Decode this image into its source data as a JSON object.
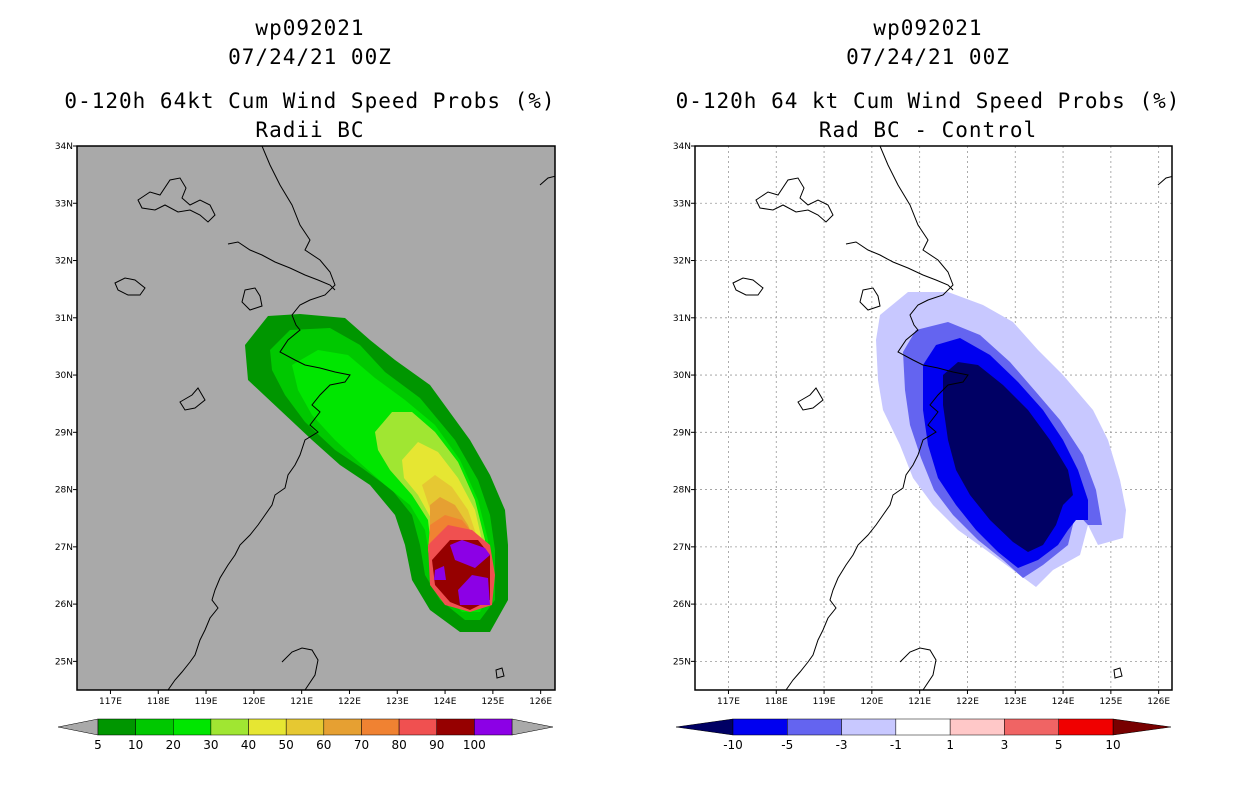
{
  "left_panel": {
    "storm_id": "wp092021",
    "datetime": "07/24/21 00Z",
    "product": "0-120h 64kt Cum Wind Speed Probs (%)",
    "subtitle": "Radii BC",
    "background_color": "#a9a9a9",
    "colorbar": {
      "colors": [
        "#009600",
        "#00c800",
        "#00e600",
        "#a0e632",
        "#e6e632",
        "#e6c832",
        "#e6a032",
        "#f08232",
        "#f05050",
        "#960000",
        "#8c00e6"
      ],
      "labels": [
        "5",
        "10",
        "20",
        "30",
        "40",
        "50",
        "60",
        "70",
        "80",
        "90",
        "100"
      ]
    },
    "probability_contours": [
      {
        "level": 5,
        "color": "#009600"
      },
      {
        "level": 10,
        "color": "#00c800"
      },
      {
        "level": 20,
        "color": "#00e600"
      },
      {
        "level": 30,
        "color": "#a0e632"
      },
      {
        "level": 40,
        "color": "#e6e632"
      },
      {
        "level": 50,
        "color": "#e6c832"
      },
      {
        "level": 60,
        "color": "#e6a032"
      },
      {
        "level": 70,
        "color": "#f08232"
      },
      {
        "level": 80,
        "color": "#f05050"
      },
      {
        "level": 90,
        "color": "#960000"
      },
      {
        "level": 100,
        "color": "#8c00e6"
      }
    ]
  },
  "right_panel": {
    "storm_id": "wp092021",
    "datetime": "07/24/21 00Z",
    "product": "0-120h 64 kt Cum Wind Speed Probs (%)",
    "subtitle": "Rad BC - Control",
    "background_color": "#ffffff",
    "colorbar": {
      "colors": [
        "#000064",
        "#0000f0",
        "#6464f0",
        "#c8c8ff",
        "#ffffff",
        "#ffc8c8",
        "#f06464",
        "#f00000",
        "#780000"
      ],
      "labels": [
        "-10",
        "-5",
        "-3",
        "-1",
        "1",
        "3",
        "5",
        "10"
      ]
    },
    "difference_contours": [
      {
        "level": "-1 to -3",
        "color": "#c8c8ff"
      },
      {
        "level": "-3 to -5",
        "color": "#6464f0"
      },
      {
        "level": "-5 to -10",
        "color": "#0000f0"
      },
      {
        "level": "< -10",
        "color": "#000064"
      }
    ]
  },
  "map": {
    "lon_labels": [
      "117E",
      "118E",
      "119E",
      "120E",
      "121E",
      "122E",
      "123E",
      "124E",
      "125E",
      "126E"
    ],
    "lat_labels": [
      "34N",
      "33N",
      "32N",
      "31N",
      "30N",
      "29N",
      "28N",
      "27N",
      "26N",
      "25N"
    ],
    "lon_range": [
      116.3,
      126.3
    ],
    "lat_range": [
      24.5,
      34.0
    ]
  }
}
